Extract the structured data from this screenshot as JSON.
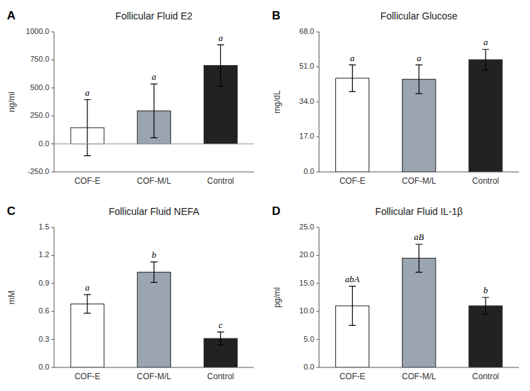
{
  "chart_data": [
    {
      "type": "bar",
      "panel_label": "A",
      "title": "Follicular Fluid E2",
      "ylabel": "ng/ml",
      "categories": [
        "COF-E",
        "COF-M/L",
        "Control"
      ],
      "values": [
        145.0,
        295.0,
        700.0
      ],
      "errors": [
        250.0,
        240.0,
        185.0
      ],
      "annotations": [
        "a",
        "a",
        "a"
      ],
      "colors": [
        "#ffffff",
        "#9aa5b1",
        "#222222"
      ],
      "ylim": [
        -250,
        1000
      ],
      "yticks": [
        {
          "value": -250,
          "label": "-250.0"
        },
        {
          "value": 0,
          "label": "0.0"
        },
        {
          "value": 250,
          "label": "250.0"
        },
        {
          "value": 500,
          "label": "500.0"
        },
        {
          "value": 750,
          "label": "750.0"
        },
        {
          "value": 1000,
          "label": "1000.0"
        }
      ],
      "grid": false
    },
    {
      "type": "bar",
      "panel_label": "B",
      "title": "Follicular Glucose",
      "ylabel": "mg/dL",
      "categories": [
        "COF-E",
        "COF-M/L",
        "Control"
      ],
      "values": [
        45.5,
        45.0,
        54.5
      ],
      "errors": [
        6.5,
        7.0,
        5.0
      ],
      "annotations": [
        "a",
        "a",
        "a"
      ],
      "colors": [
        "#ffffff",
        "#9aa5b1",
        "#222222"
      ],
      "ylim": [
        0,
        68
      ],
      "yticks": [
        {
          "value": 0,
          "label": "0.0"
        },
        {
          "value": 17,
          "label": "17.0"
        },
        {
          "value": 34,
          "label": "34.0"
        },
        {
          "value": 51,
          "label": "51.0"
        },
        {
          "value": 68,
          "label": "68.0"
        }
      ],
      "grid": false
    },
    {
      "type": "bar",
      "panel_label": "C",
      "title": "Follicular Fluid NEFA",
      "ylabel": "mM",
      "categories": [
        "COF-E",
        "COF-M/L",
        "Control"
      ],
      "values": [
        0.68,
        1.02,
        0.31
      ],
      "errors": [
        0.1,
        0.11,
        0.07
      ],
      "annotations": [
        "a",
        "b",
        "c"
      ],
      "colors": [
        "#ffffff",
        "#9aa5b1",
        "#222222"
      ],
      "ylim": [
        0,
        1.5
      ],
      "yticks": [
        {
          "value": 0,
          "label": "0.0"
        },
        0.3,
        0.6,
        0.9,
        1.2,
        1.5
      ],
      "grid": false
    },
    {
      "type": "bar",
      "panel_label": "D",
      "title": "Follicular Fluid IL-1β",
      "ylabel": "pg/ml",
      "categories": [
        "COF-E",
        "COF-M/L",
        "Control"
      ],
      "values": [
        11.0,
        19.5,
        11.0
      ],
      "errors": [
        3.5,
        2.5,
        1.5
      ],
      "annotations": [
        "abA",
        "aB",
        "b"
      ],
      "colors": [
        "#ffffff",
        "#9aa5b1",
        "#222222"
      ],
      "ylim": [
        0,
        25
      ],
      "yticks": [
        {
          "value": 0,
          "label": "0.0"
        },
        {
          "value": 5,
          "label": "5.0"
        },
        {
          "value": 10,
          "label": "10.0"
        },
        {
          "value": 15,
          "label": "15.0"
        },
        {
          "value": 20,
          "label": "20.0"
        },
        {
          "value": 25,
          "label": "25.0"
        }
      ],
      "grid": false
    }
  ]
}
